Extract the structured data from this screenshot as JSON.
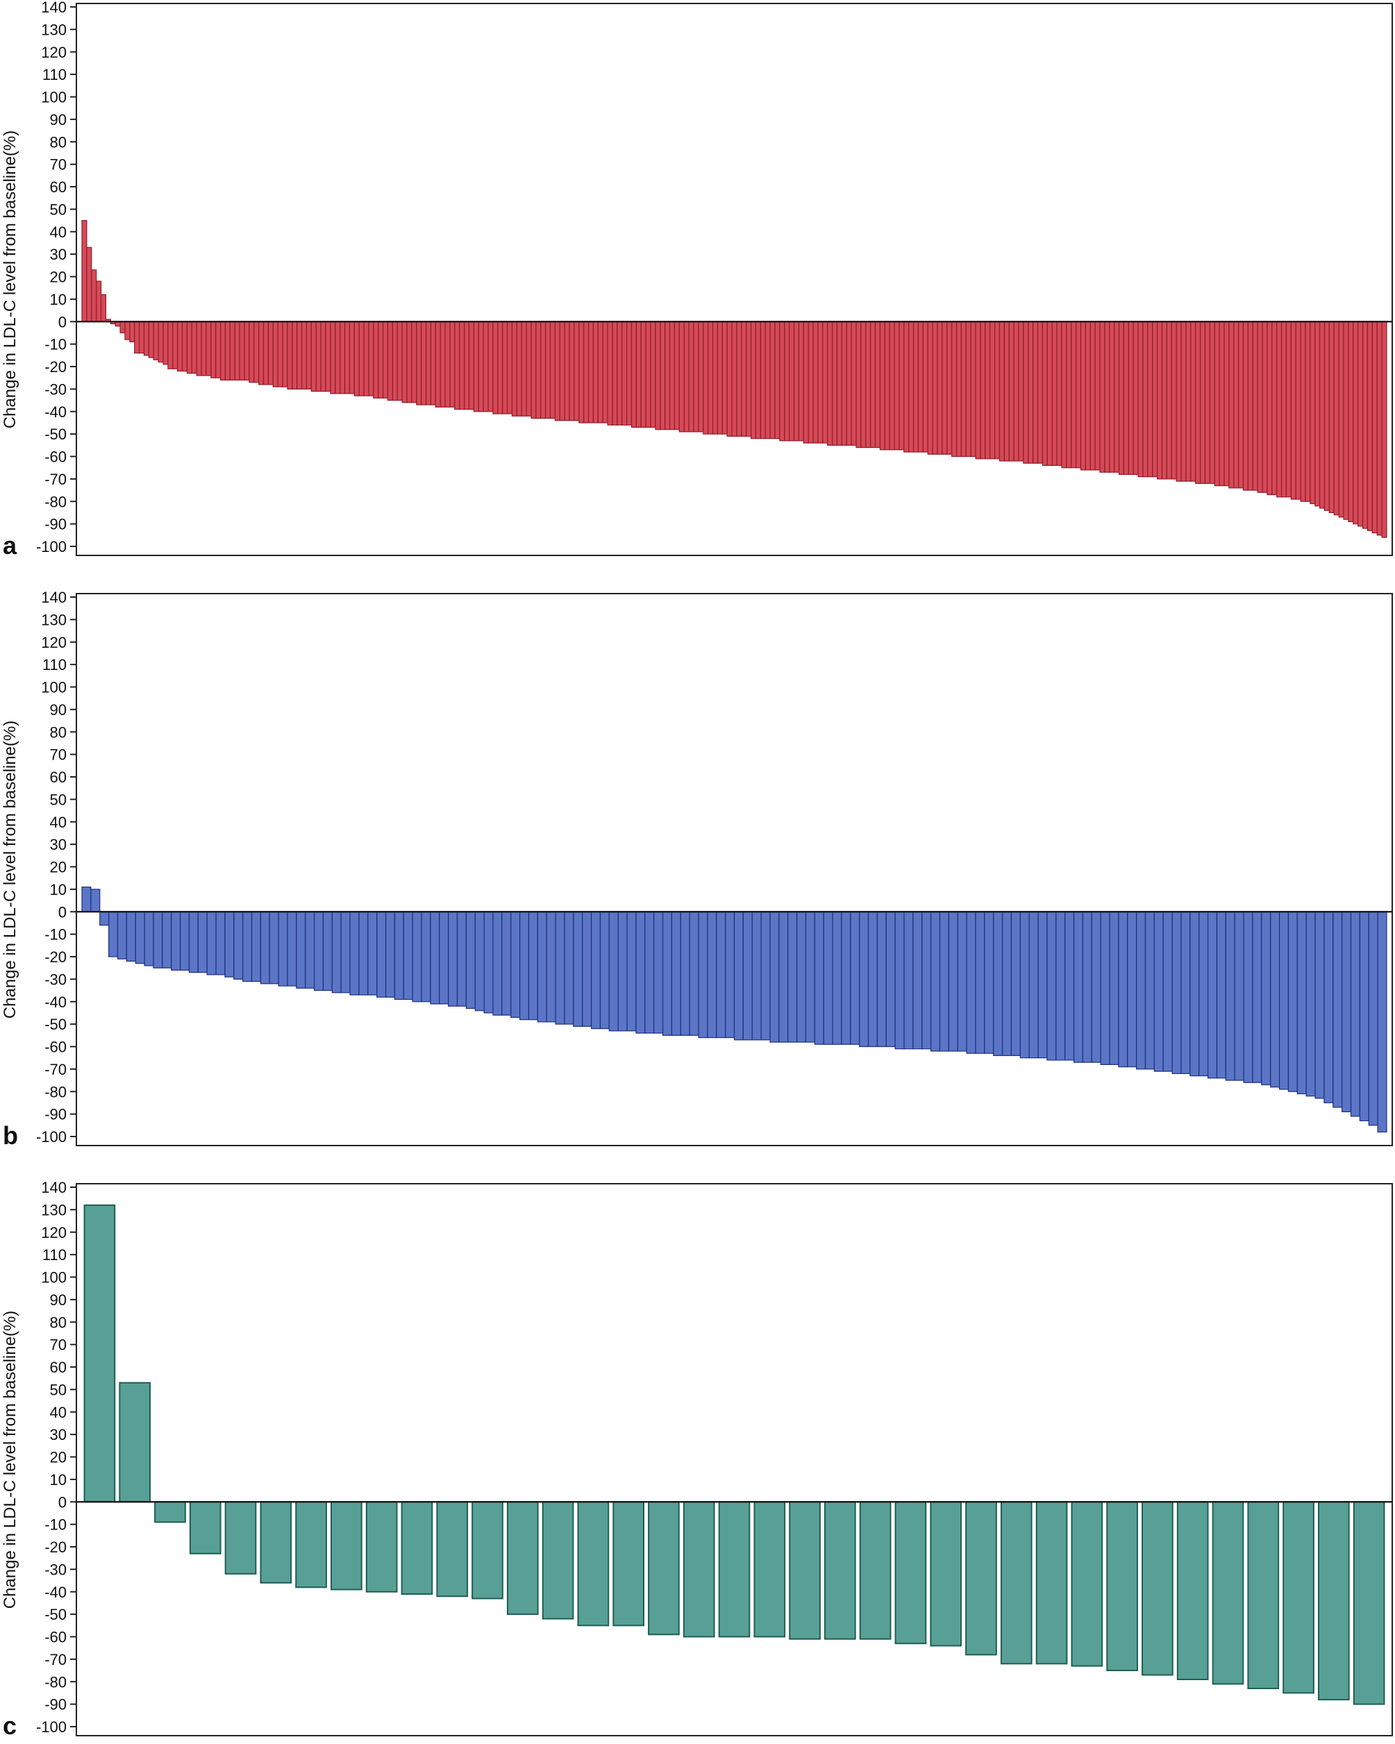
{
  "chart_data": [
    {
      "type": "bar",
      "panel_label": "a",
      "ylabel": "Change in LDL-C level from baseline(%)",
      "ylim": [
        -100,
        140
      ],
      "yticks": [
        140,
        130,
        120,
        110,
        100,
        90,
        80,
        70,
        60,
        50,
        40,
        30,
        20,
        10,
        0,
        -10,
        -20,
        -30,
        -40,
        -50,
        -60,
        -70,
        -80,
        -90,
        -100
      ],
      "grid": false,
      "colors": {
        "fill": "#d64a58",
        "stroke": "#8e1c28"
      },
      "values": [
        45,
        33,
        23,
        18,
        12,
        1,
        -1,
        -2,
        -5,
        -8,
        -9,
        -14,
        -14,
        -15,
        -16,
        -17,
        -18,
        -19,
        -21,
        -21,
        -22,
        -22,
        -23,
        -23,
        -24,
        -24,
        -24,
        -25,
        -25,
        -26,
        -26,
        -26,
        -26,
        -26,
        -26,
        -27,
        -27,
        -28,
        -28,
        -28,
        -29,
        -29,
        -29,
        -30,
        -30,
        -30,
        -30,
        -30,
        -31,
        -31,
        -31,
        -31,
        -32,
        -32,
        -32,
        -32,
        -32,
        -33,
        -33,
        -33,
        -33,
        -34,
        -34,
        -34,
        -35,
        -35,
        -35,
        -36,
        -36,
        -36,
        -37,
        -37,
        -37,
        -37,
        -38,
        -38,
        -38,
        -38,
        -39,
        -39,
        -39,
        -39,
        -40,
        -40,
        -40,
        -40,
        -41,
        -41,
        -41,
        -41,
        -42,
        -42,
        -42,
        -42,
        -43,
        -43,
        -43,
        -43,
        -43,
        -44,
        -44,
        -44,
        -44,
        -44,
        -45,
        -45,
        -45,
        -45,
        -45,
        -45,
        -46,
        -46,
        -46,
        -46,
        -46,
        -47,
        -47,
        -47,
        -47,
        -47,
        -48,
        -48,
        -48,
        -48,
        -48,
        -49,
        -49,
        -49,
        -49,
        -49,
        -50,
        -50,
        -50,
        -50,
        -50,
        -51,
        -51,
        -51,
        -51,
        -51,
        -52,
        -52,
        -52,
        -52,
        -52,
        -52,
        -53,
        -53,
        -53,
        -53,
        -53,
        -54,
        -54,
        -54,
        -54,
        -54,
        -55,
        -55,
        -55,
        -55,
        -55,
        -55,
        -56,
        -56,
        -56,
        -56,
        -56,
        -57,
        -57,
        -57,
        -57,
        -57,
        -58,
        -58,
        -58,
        -58,
        -58,
        -59,
        -59,
        -59,
        -59,
        -59,
        -60,
        -60,
        -60,
        -60,
        -60,
        -61,
        -61,
        -61,
        -61,
        -61,
        -62,
        -62,
        -62,
        -62,
        -62,
        -63,
        -63,
        -63,
        -63,
        -64,
        -64,
        -64,
        -64,
        -65,
        -65,
        -65,
        -65,
        -66,
        -66,
        -66,
        -66,
        -67,
        -67,
        -67,
        -67,
        -68,
        -68,
        -68,
        -68,
        -69,
        -69,
        -69,
        -69,
        -70,
        -70,
        -70,
        -70,
        -71,
        -71,
        -71,
        -71,
        -72,
        -72,
        -72,
        -72,
        -73,
        -73,
        -73,
        -74,
        -74,
        -74,
        -75,
        -75,
        -75,
        -76,
        -76,
        -77,
        -77,
        -78,
        -78,
        -78,
        -79,
        -79,
        -80,
        -80,
        -81,
        -82,
        -83,
        -84,
        -85,
        -86,
        -87,
        -88,
        -89,
        -90,
        -91,
        -92,
        -93,
        -94,
        -95,
        -96
      ]
    },
    {
      "type": "bar",
      "panel_label": "b",
      "ylabel": "Change in LDL-C level from baseline(%)",
      "ylim": [
        -100,
        140
      ],
      "yticks": [
        140,
        130,
        120,
        110,
        100,
        90,
        80,
        70,
        60,
        50,
        40,
        30,
        20,
        10,
        0,
        -10,
        -20,
        -30,
        -40,
        -50,
        -60,
        -70,
        -80,
        -90,
        -100
      ],
      "grid": false,
      "colors": {
        "fill": "#5b76c7",
        "stroke": "#1f2f7a"
      },
      "values": [
        11,
        10,
        -6,
        -20,
        -21,
        -22,
        -23,
        -24,
        -25,
        -25,
        -26,
        -26,
        -27,
        -27,
        -28,
        -28,
        -29,
        -30,
        -31,
        -31,
        -32,
        -32,
        -33,
        -33,
        -34,
        -34,
        -35,
        -35,
        -36,
        -36,
        -37,
        -37,
        -37,
        -38,
        -38,
        -39,
        -39,
        -40,
        -40,
        -41,
        -41,
        -42,
        -42,
        -43,
        -44,
        -45,
        -46,
        -46,
        -47,
        -48,
        -48,
        -49,
        -49,
        -50,
        -50,
        -51,
        -51,
        -52,
        -52,
        -53,
        -53,
        -53,
        -54,
        -54,
        -54,
        -55,
        -55,
        -55,
        -55,
        -56,
        -56,
        -56,
        -56,
        -57,
        -57,
        -57,
        -57,
        -58,
        -58,
        -58,
        -58,
        -58,
        -59,
        -59,
        -59,
        -59,
        -59,
        -60,
        -60,
        -60,
        -60,
        -61,
        -61,
        -61,
        -61,
        -62,
        -62,
        -62,
        -62,
        -63,
        -63,
        -63,
        -64,
        -64,
        -64,
        -65,
        -65,
        -65,
        -66,
        -66,
        -66,
        -67,
        -67,
        -67,
        -68,
        -68,
        -69,
        -69,
        -70,
        -70,
        -71,
        -71,
        -72,
        -72,
        -73,
        -73,
        -74,
        -74,
        -75,
        -75,
        -76,
        -76,
        -77,
        -78,
        -79,
        -80,
        -81,
        -82,
        -83,
        -85,
        -87,
        -89,
        -91,
        -93,
        -95,
        -98
      ]
    },
    {
      "type": "bar",
      "panel_label": "c",
      "ylabel": "Change in LDL-C level from baseline(%)",
      "ylim": [
        -100,
        140
      ],
      "yticks": [
        140,
        130,
        120,
        110,
        100,
        90,
        80,
        70,
        60,
        50,
        40,
        30,
        20,
        10,
        0,
        -10,
        -20,
        -30,
        -40,
        -50,
        -60,
        -70,
        -80,
        -90,
        -100
      ],
      "grid": false,
      "colors": {
        "fill": "#58a096",
        "stroke": "#1e5e52"
      },
      "values": [
        132,
        53,
        -9,
        -23,
        -32,
        -36,
        -38,
        -39,
        -40,
        -41,
        -42,
        -43,
        -50,
        -52,
        -55,
        -55,
        -59,
        -60,
        -60,
        -60,
        -61,
        -61,
        -61,
        -63,
        -64,
        -68,
        -72,
        -72,
        -73,
        -75,
        -77,
        -79,
        -81,
        -83,
        -85,
        -88,
        -90
      ]
    }
  ]
}
